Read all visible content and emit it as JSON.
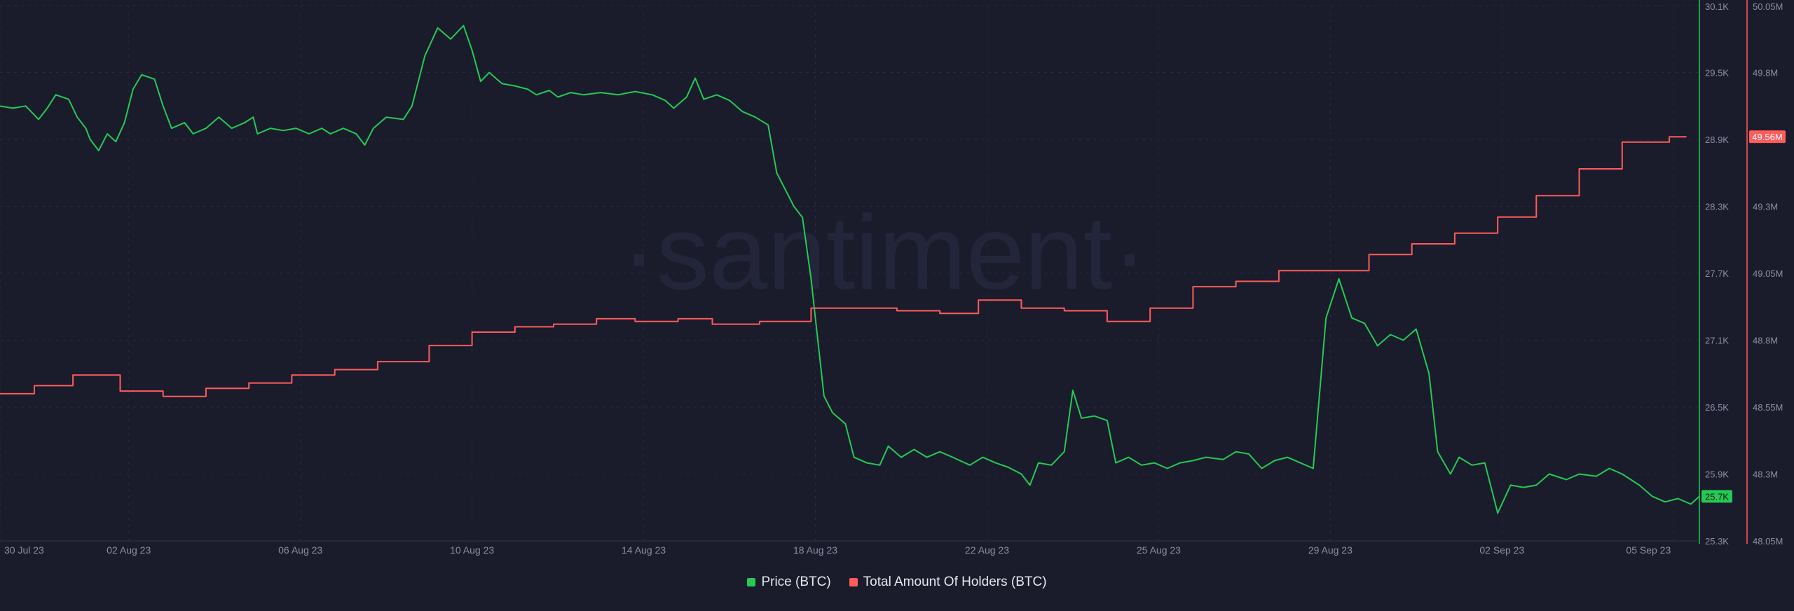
{
  "chart_data": {
    "type": "line",
    "watermark": "·santiment·",
    "x_tick_labels": [
      "30 Jul 23",
      "02 Aug 23",
      "06 Aug 23",
      "10 Aug 23",
      "14 Aug 23",
      "18 Aug 23",
      "22 Aug 23",
      "25 Aug 23",
      "29 Aug 23",
      "02 Sep 23",
      "05 Sep 23"
    ],
    "x_tick_days": [
      0,
      3,
      7,
      11,
      15,
      19,
      23,
      27,
      31,
      35,
      39
    ],
    "grid": true,
    "legend_position": "bottom-center",
    "axes": {
      "price": {
        "side": "right",
        "color": "#26c953",
        "ylim": [
          25300,
          30100
        ],
        "tick_labels": [
          "30.1K",
          "29.5K",
          "28.9K",
          "28.3K",
          "27.7K",
          "27.1K",
          "26.5K",
          "25.9K",
          "25.3K"
        ],
        "tick_values": [
          30100,
          29500,
          28900,
          28300,
          27700,
          27100,
          26500,
          25900,
          25300
        ],
        "current_label": "25.7K",
        "current_value": 25700
      },
      "holders": {
        "side": "right",
        "color": "#ff5b5b",
        "ylim": [
          48050000,
          50050000
        ],
        "tick_labels": [
          "50.05M",
          "49.8M",
          "49.55M",
          "49.3M",
          "49.05M",
          "48.8M",
          "48.55M",
          "48.3M",
          "48.05M"
        ],
        "tick_values": [
          50050000,
          49800000,
          49550000,
          49300000,
          49050000,
          48800000,
          48550000,
          48300000,
          48050000
        ],
        "current_label": "49.56M",
        "current_value": 49560000
      }
    },
    "series": [
      {
        "name": "Price (BTC)",
        "axis": "price",
        "color": "#26c953",
        "step": false,
        "points": [
          [
            0,
            29200
          ],
          [
            0.3,
            29180
          ],
          [
            0.6,
            29200
          ],
          [
            0.9,
            29080
          ],
          [
            1.1,
            29180
          ],
          [
            1.3,
            29300
          ],
          [
            1.6,
            29260
          ],
          [
            1.8,
            29100
          ],
          [
            2.0,
            29000
          ],
          [
            2.1,
            28900
          ],
          [
            2.3,
            28800
          ],
          [
            2.5,
            28950
          ],
          [
            2.7,
            28880
          ],
          [
            2.9,
            29050
          ],
          [
            3.1,
            29350
          ],
          [
            3.3,
            29480
          ],
          [
            3.6,
            29440
          ],
          [
            3.8,
            29200
          ],
          [
            4.0,
            29000
          ],
          [
            4.3,
            29050
          ],
          [
            4.5,
            28950
          ],
          [
            4.8,
            29000
          ],
          [
            5.1,
            29100
          ],
          [
            5.4,
            29000
          ],
          [
            5.7,
            29050
          ],
          [
            5.9,
            29100
          ],
          [
            6.0,
            28950
          ],
          [
            6.3,
            29000
          ],
          [
            6.6,
            28980
          ],
          [
            6.9,
            29000
          ],
          [
            7.2,
            28950
          ],
          [
            7.5,
            29000
          ],
          [
            7.7,
            28950
          ],
          [
            8.0,
            29000
          ],
          [
            8.3,
            28950
          ],
          [
            8.5,
            28850
          ],
          [
            8.7,
            29000
          ],
          [
            9.0,
            29100
          ],
          [
            9.4,
            29080
          ],
          [
            9.6,
            29200
          ],
          [
            9.9,
            29650
          ],
          [
            10.2,
            29900
          ],
          [
            10.5,
            29800
          ],
          [
            10.8,
            29920
          ],
          [
            11.0,
            29700
          ],
          [
            11.2,
            29420
          ],
          [
            11.4,
            29500
          ],
          [
            11.7,
            29400
          ],
          [
            12.0,
            29380
          ],
          [
            12.3,
            29350
          ],
          [
            12.5,
            29300
          ],
          [
            12.8,
            29340
          ],
          [
            13.0,
            29280
          ],
          [
            13.3,
            29320
          ],
          [
            13.6,
            29300
          ],
          [
            14.0,
            29320
          ],
          [
            14.4,
            29300
          ],
          [
            14.8,
            29330
          ],
          [
            15.2,
            29300
          ],
          [
            15.5,
            29250
          ],
          [
            15.7,
            29180
          ],
          [
            16.0,
            29280
          ],
          [
            16.2,
            29450
          ],
          [
            16.4,
            29260
          ],
          [
            16.7,
            29300
          ],
          [
            17.0,
            29250
          ],
          [
            17.3,
            29150
          ],
          [
            17.6,
            29100
          ],
          [
            17.9,
            29030
          ],
          [
            18.1,
            28600
          ],
          [
            18.5,
            28300
          ],
          [
            18.7,
            28200
          ],
          [
            18.9,
            27650
          ],
          [
            19.0,
            27300
          ],
          [
            19.2,
            26600
          ],
          [
            19.4,
            26450
          ],
          [
            19.7,
            26350
          ],
          [
            19.9,
            26050
          ],
          [
            20.2,
            26000
          ],
          [
            20.5,
            25980
          ],
          [
            20.7,
            26150
          ],
          [
            21.0,
            26050
          ],
          [
            21.3,
            26120
          ],
          [
            21.6,
            26050
          ],
          [
            21.9,
            26100
          ],
          [
            22.2,
            26050
          ],
          [
            22.6,
            25980
          ],
          [
            22.9,
            26050
          ],
          [
            23.2,
            26000
          ],
          [
            23.5,
            25960
          ],
          [
            23.8,
            25900
          ],
          [
            24.0,
            25800
          ],
          [
            24.2,
            26000
          ],
          [
            24.5,
            25980
          ],
          [
            24.8,
            26100
          ],
          [
            25.0,
            26650
          ],
          [
            25.2,
            26400
          ],
          [
            25.5,
            26420
          ],
          [
            25.8,
            26380
          ],
          [
            26.0,
            26000
          ],
          [
            26.3,
            26050
          ],
          [
            26.6,
            25980
          ],
          [
            26.9,
            26000
          ],
          [
            27.2,
            25950
          ],
          [
            27.5,
            26000
          ],
          [
            27.8,
            26020
          ],
          [
            28.1,
            26050
          ],
          [
            28.5,
            26030
          ],
          [
            28.8,
            26100
          ],
          [
            29.1,
            26080
          ],
          [
            29.4,
            25950
          ],
          [
            29.7,
            26020
          ],
          [
            30.0,
            26050
          ],
          [
            30.3,
            26000
          ],
          [
            30.6,
            25950
          ],
          [
            30.9,
            27300
          ],
          [
            31.2,
            27650
          ],
          [
            31.5,
            27300
          ],
          [
            31.8,
            27250
          ],
          [
            32.1,
            27050
          ],
          [
            32.4,
            27150
          ],
          [
            32.7,
            27100
          ],
          [
            33.0,
            27200
          ],
          [
            33.3,
            26800
          ],
          [
            33.5,
            26100
          ],
          [
            33.8,
            25900
          ],
          [
            34.0,
            26050
          ],
          [
            34.3,
            25980
          ],
          [
            34.6,
            26000
          ],
          [
            34.9,
            25550
          ],
          [
            35.2,
            25800
          ],
          [
            35.5,
            25780
          ],
          [
            35.8,
            25800
          ],
          [
            36.1,
            25900
          ],
          [
            36.5,
            25850
          ],
          [
            36.8,
            25900
          ],
          [
            37.2,
            25880
          ],
          [
            37.5,
            25950
          ],
          [
            37.8,
            25900
          ],
          [
            38.2,
            25800
          ],
          [
            38.5,
            25700
          ],
          [
            38.8,
            25650
          ],
          [
            39.1,
            25680
          ],
          [
            39.4,
            25630
          ],
          [
            39.6,
            25700
          ]
        ]
      },
      {
        "name": "Total Amount Of Holders (BTC)",
        "axis": "holders",
        "color": "#ff5b5b",
        "step": true,
        "points": [
          [
            0,
            48600
          ],
          [
            0.8,
            48630
          ],
          [
            1.7,
            48670
          ],
          [
            2.8,
            48610
          ],
          [
            3.8,
            48590
          ],
          [
            4.8,
            48620
          ],
          [
            5.8,
            48640
          ],
          [
            6.8,
            48670
          ],
          [
            7.8,
            48690
          ],
          [
            8.8,
            48720
          ],
          [
            10.0,
            48780
          ],
          [
            11.0,
            48830
          ],
          [
            12.0,
            48850
          ],
          [
            12.9,
            48860
          ],
          [
            13.9,
            48880
          ],
          [
            14.8,
            48870
          ],
          [
            15.8,
            48880
          ],
          [
            16.6,
            48860
          ],
          [
            17.7,
            48870
          ],
          [
            18.6,
            48870
          ],
          [
            18.9,
            48920
          ],
          [
            19.9,
            48920
          ],
          [
            20.9,
            48910
          ],
          [
            21.9,
            48900
          ],
          [
            22.8,
            48950
          ],
          [
            23.8,
            48920
          ],
          [
            24.8,
            48910
          ],
          [
            25.8,
            48870
          ],
          [
            26.8,
            48920
          ],
          [
            27.8,
            49000
          ],
          [
            28.8,
            49020
          ],
          [
            29.8,
            49060
          ],
          [
            30.8,
            49060
          ],
          [
            31.9,
            49120
          ],
          [
            32.9,
            49160
          ],
          [
            33.9,
            49200
          ],
          [
            34.9,
            49260
          ],
          [
            35.8,
            49340
          ],
          [
            36.8,
            49440
          ],
          [
            37.8,
            49540
          ],
          [
            38.9,
            49560
          ],
          [
            39.3,
            49560
          ]
        ]
      }
    ]
  },
  "legend": [
    {
      "label": "Price (BTC)",
      "color": "#26c953"
    },
    {
      "label": "Total Amount Of Holders (BTC)",
      "color": "#ff5b5b"
    }
  ]
}
